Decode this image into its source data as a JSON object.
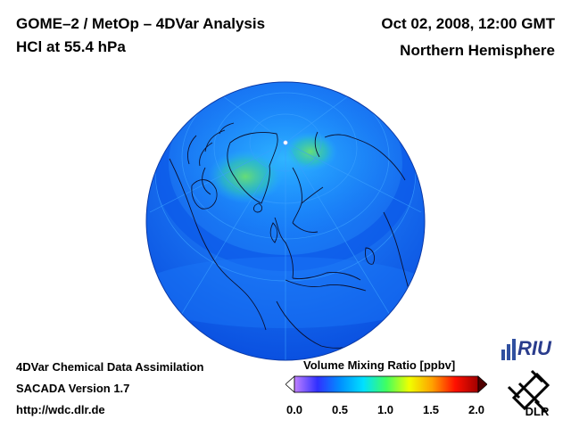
{
  "header": {
    "title_line1": "GOME–2 / MetOp – 4DVar Analysis",
    "title_line2": "HCl at 55.4 hPa",
    "datetime": "Oct 02, 2008, 12:00 GMT",
    "hemisphere": "Northern Hemisphere"
  },
  "footer": {
    "line1": "4DVar Chemical Data Assimilation",
    "line2": "SACADA Version 1.7",
    "url": "http://wdc.dlr.de"
  },
  "colorbar": {
    "title": "Volume Mixing Ratio [ppbv]",
    "ticks": [
      "0.0",
      "0.5",
      "1.0",
      "1.5",
      "2.0"
    ],
    "min": 0.0,
    "max": 2.0,
    "colors": [
      "#ffffff",
      "#c080ff",
      "#3030ff",
      "#0090ff",
      "#00e0ff",
      "#40ff60",
      "#f0ff00",
      "#ffa000",
      "#ff1000",
      "#a00000",
      "#500000"
    ]
  },
  "map": {
    "projection": "orthographic",
    "hemisphere_view": "north pole",
    "background_vmr": 0.45,
    "enhanced_regions": [
      {
        "name": "Greenland",
        "vmr": 1.0
      },
      {
        "name": "Kara Sea",
        "vmr": 1.0
      }
    ],
    "colors": {
      "low": "#0a5ff0",
      "mid": "#1a8cff",
      "high": "#25b4ff",
      "peak": "#5ad27a",
      "coast": "#0a1030"
    }
  },
  "logos": {
    "riu": "RIU",
    "dlr": "DLR"
  }
}
